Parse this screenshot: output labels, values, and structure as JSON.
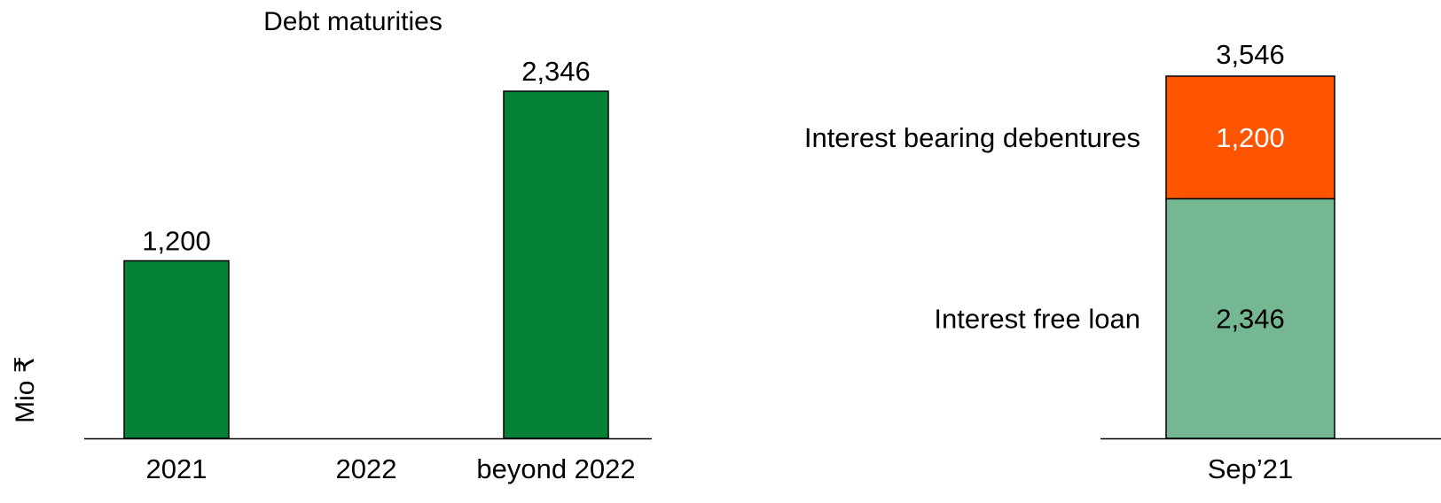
{
  "chart_data": [
    {
      "type": "bar",
      "title": "Debt maturities",
      "ylabel": "Mio ₹",
      "xlabel": "",
      "categories": [
        "2021",
        "2022",
        "beyond 2022"
      ],
      "values": [
        1200,
        0,
        2346
      ],
      "value_labels": [
        "1,200",
        "",
        "2,346"
      ],
      "ylim": [
        0,
        2346
      ],
      "grid": false,
      "legend": "none",
      "colors": {
        "bar": "#058237"
      }
    },
    {
      "type": "bar",
      "stacked": true,
      "title": "",
      "xlabel": "",
      "ylabel": "",
      "categories": [
        "Sep’21"
      ],
      "series": [
        {
          "name": "Interest free loan",
          "values": [
            2346
          ],
          "value_label": "2,346",
          "color": "#74B792",
          "label_color": "#000000"
        },
        {
          "name": "Interest bearing debentures",
          "values": [
            1200
          ],
          "value_label": "1,200",
          "color": "#FF5400",
          "label_color": "#FFFFFF"
        }
      ],
      "total": 3546,
      "total_label": "3,546",
      "ylim": [
        0,
        3546
      ],
      "grid": false,
      "legend": "inline-left-of-bar"
    }
  ]
}
